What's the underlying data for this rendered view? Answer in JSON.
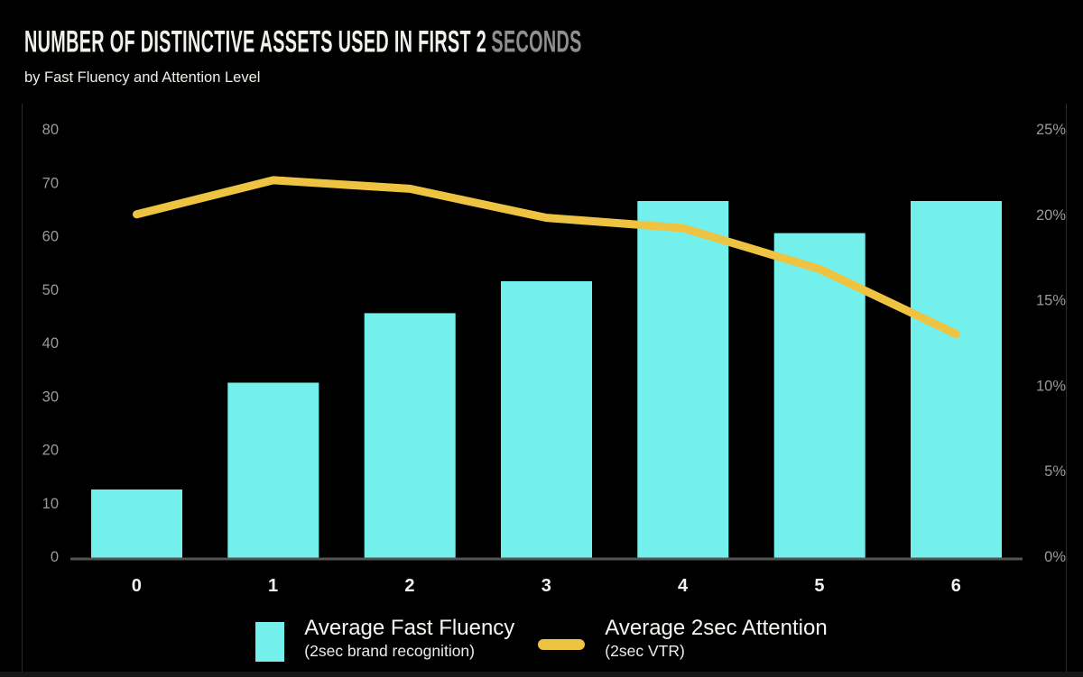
{
  "header": {
    "title_main": "NUMBER OF DISTINCTIVE ASSETS USED IN FIRST 2",
    "title_accent": "SECONDS",
    "subtitle": "by Fast Fluency and Attention Level"
  },
  "chart_data": {
    "type": "bar+line combo",
    "title": "NUMBER OF DISTINCTIVE ASSETS USED IN FIRST 2 SECONDS",
    "subtitle": "by Fast Fluency and Attention Level",
    "categories": [
      "0",
      "1",
      "2",
      "3",
      "4",
      "5",
      "6"
    ],
    "series": [
      {
        "name": "Average Fast Fluency",
        "sublabel": "(2sec brand recognition)",
        "type": "bar",
        "axis": "left",
        "color": "#74F0EC",
        "values": [
          13,
          33,
          46,
          52,
          67,
          61,
          67
        ]
      },
      {
        "name": "Average 2sec Attention",
        "sublabel": "(2sec VTR)",
        "type": "line",
        "axis": "right",
        "color": "#EFC342",
        "unit": "%",
        "values": [
          20,
          22,
          21.5,
          19.8,
          19.2,
          16.8,
          13
        ]
      }
    ],
    "left_axis": {
      "min": 0,
      "max": 80,
      "tick_step": 10,
      "ticks": [
        "0",
        "10",
        "20",
        "30",
        "40",
        "50",
        "60",
        "70",
        "80"
      ]
    },
    "right_axis": {
      "min": 0,
      "max": 25,
      "tick_step": 5,
      "ticks": [
        "0%",
        "5%",
        "10%",
        "15%",
        "20%",
        "25%"
      ]
    },
    "grid": false,
    "legend_position": "bottom",
    "background": "#000000",
    "axis_text_color": "#9A9A98",
    "axis_line_color": "#545454"
  }
}
